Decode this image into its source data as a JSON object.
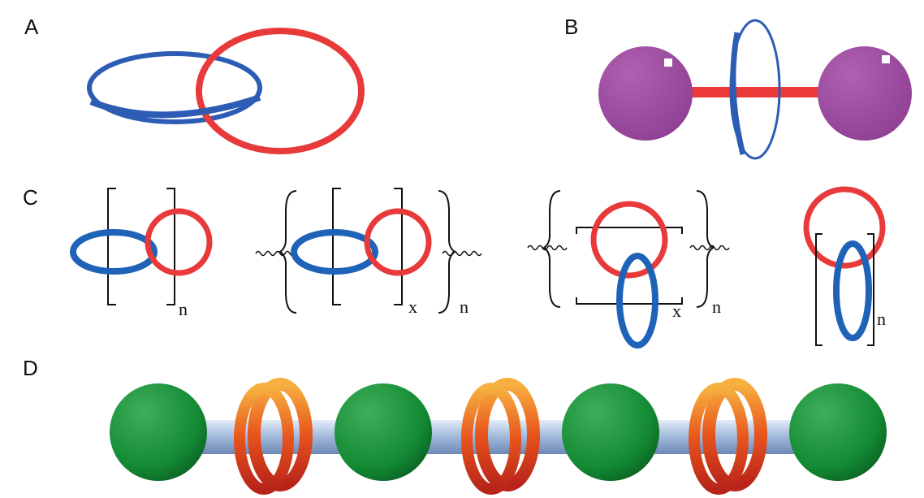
{
  "panels": [
    {
      "label": "A"
    },
    {
      "label": "B"
    },
    {
      "label": "C",
      "structures": [
        {
          "subscripts": [
            "n"
          ]
        },
        {
          "subscripts": [
            "x",
            "n"
          ]
        },
        {
          "subscripts": [
            "x",
            "n"
          ]
        },
        {
          "subscripts": [
            "n"
          ]
        }
      ]
    },
    {
      "label": "D"
    }
  ]
}
